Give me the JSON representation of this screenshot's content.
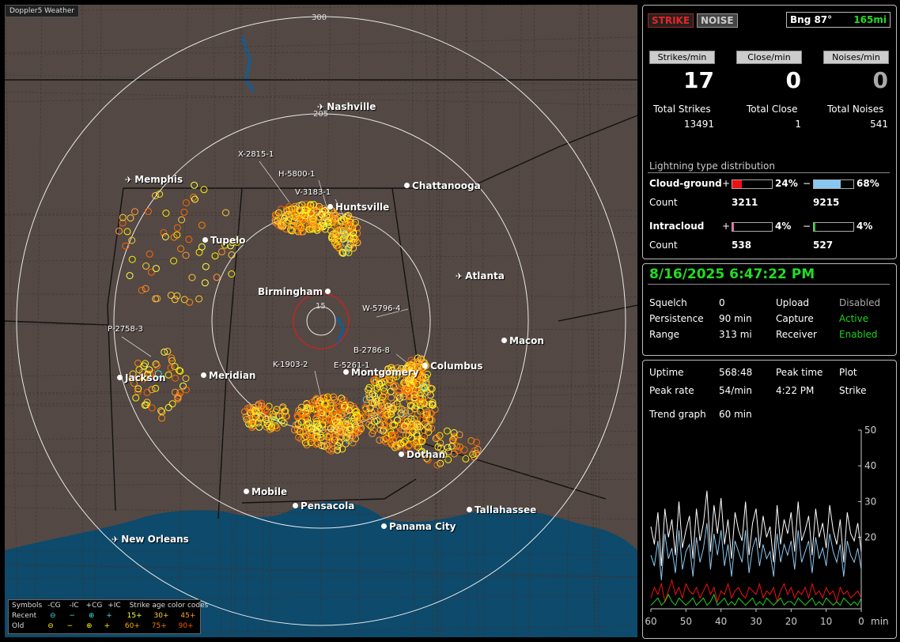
{
  "map": {
    "title": "Doppler5 Weather",
    "range_labels": [
      "300",
      "205",
      "15"
    ],
    "cities": [
      {
        "name": "Nashville",
        "icon": "airport-icon"
      },
      {
        "name": "Memphis",
        "icon": "airport-icon"
      },
      {
        "name": "Chattanooga",
        "icon": "city-dot-icon"
      },
      {
        "name": "Huntsville",
        "icon": "city-dot-icon"
      },
      {
        "name": "Tupelo",
        "icon": "city-dot-icon"
      },
      {
        "name": "Atlanta",
        "icon": "airport-icon"
      },
      {
        "name": "Birmingham",
        "icon": "city-dot-icon"
      },
      {
        "name": "Macon",
        "icon": "city-dot-icon"
      },
      {
        "name": "Columbus",
        "icon": "city-dot-icon"
      },
      {
        "name": "Montgomery",
        "icon": "city-dot-icon"
      },
      {
        "name": "Jackson",
        "icon": "city-dot-icon"
      },
      {
        "name": "Meridian",
        "icon": "city-dot-icon"
      },
      {
        "name": "Dothan",
        "icon": "city-dot-icon"
      },
      {
        "name": "Mobile",
        "icon": "city-dot-icon"
      },
      {
        "name": "Pensacola",
        "icon": "city-dot-icon"
      },
      {
        "name": "Tallahassee",
        "icon": "city-dot-icon"
      },
      {
        "name": "Panama City",
        "icon": "city-dot-icon"
      },
      {
        "name": "New Orleans",
        "icon": "airport-icon"
      }
    ],
    "storm_labels": [
      "X-2815-1",
      "H-5800-1",
      "V-3183-1",
      "W-5796-4",
      "P-2758-3",
      "B-2786-8",
      "K-1903-2",
      "E-5261-1"
    ],
    "legend": {
      "symbols_label": "Symbols",
      "recent_label": "Recent",
      "old_label": "Old",
      "cols": [
        "-CG",
        "-IC",
        "+CG",
        "+IC"
      ],
      "age_title": "Strike age color codes",
      "recent_ages": [
        "15+",
        "30+",
        "45+"
      ],
      "old_ages": [
        "60+",
        "75+",
        "90+"
      ],
      "age_colors": {
        "15": "#ffff44",
        "30": "#ffcc33",
        "45": "#ff9933",
        "60": "#ffee00",
        "75": "#ff8800",
        "90": "#ff6600"
      }
    }
  },
  "status": {
    "strike_btn": "STRIKE",
    "noise_btn": "NOISE",
    "bearing": "Bng 87°",
    "distance": "165mi",
    "rates": [
      {
        "label": "Strikes/min",
        "value": "17",
        "total_label": "Total Strikes",
        "total": "13491"
      },
      {
        "label": "Close/min",
        "value": "0",
        "total_label": "Total Close",
        "total": "1"
      },
      {
        "label": "Noises/min",
        "value": "0",
        "total_label": "Total Noises",
        "total": "541"
      }
    ],
    "dist_title": "Lightning type distribution",
    "cloud_ground": {
      "label": "Cloud-ground",
      "pos_sign": "+",
      "pos_pct": "24%",
      "pos_frac": 0.24,
      "neg_sign": "−",
      "neg_pct": "68%",
      "neg_frac": 0.68,
      "count_label": "Count",
      "pos_count": "3211",
      "neg_count": "9215",
      "pos_color": "#ee1111",
      "neg_color": "#88c8f0"
    },
    "intracloud": {
      "label": "Intracloud",
      "pos_sign": "+",
      "pos_pct": "4%",
      "pos_frac": 0.04,
      "neg_sign": "−",
      "neg_pct": "4%",
      "neg_frac": 0.04,
      "count_label": "Count",
      "pos_count": "538",
      "neg_count": "527",
      "pos_color": "#ee66aa",
      "neg_color": "#22cc22"
    }
  },
  "info": {
    "datetime": "8/16/2025 6:47:22 PM",
    "rows": [
      {
        "k1": "Squelch",
        "v1": "0",
        "k2": "Upload",
        "v2": "Disabled"
      },
      {
        "k1": "Persistence",
        "v1": "90 min",
        "k2": "Capture",
        "v2": "Active"
      },
      {
        "k1": "Range",
        "v1": "313 mi",
        "k2": "Receiver",
        "v2": "Enabled"
      }
    ]
  },
  "stats": {
    "uptime_label": "Uptime",
    "uptime": "568:48",
    "peak_time_label": "Peak time",
    "peak_time": "4:22 PM",
    "plot_label": "Plot",
    "plot": "Strike",
    "peak_rate_label": "Peak rate",
    "peak_rate": "54/min",
    "trend_label": "Trend graph",
    "trend": "60 min"
  },
  "chart_data": {
    "type": "line",
    "title": "",
    "xlabel": "min",
    "ylabel": "",
    "x_ticks": [
      "60",
      "50",
      "40",
      "30",
      "20",
      "10",
      "0"
    ],
    "y_ticks": [
      "50",
      "40",
      "30",
      "20"
    ],
    "xlim": [
      60,
      0
    ],
    "ylim": [
      0,
      50
    ],
    "series": [
      {
        "color": "#ffffff",
        "values": [
          23,
          18,
          27,
          12,
          28,
          20,
          25,
          15,
          30,
          17,
          22,
          26,
          14,
          28,
          19,
          24,
          33,
          16,
          29,
          21,
          31,
          18,
          25,
          14,
          27,
          22,
          19,
          30,
          15,
          24,
          28,
          17,
          26,
          20,
          23,
          13,
          29,
          18,
          25,
          21,
          27,
          16,
          30,
          19,
          22,
          26,
          15,
          28,
          20,
          24,
          17,
          29,
          22,
          18,
          25,
          13,
          27,
          21,
          19,
          24,
          16
        ]
      },
      {
        "color": "#8ec8f0",
        "values": [
          15,
          12,
          19,
          8,
          21,
          14,
          17,
          10,
          22,
          11,
          16,
          18,
          9,
          20,
          13,
          17,
          24,
          11,
          21,
          15,
          22,
          12,
          18,
          9,
          19,
          16,
          13,
          22,
          10,
          17,
          20,
          12,
          18,
          14,
          16,
          9,
          21,
          13,
          18,
          15,
          19,
          11,
          22,
          13,
          16,
          19,
          10,
          20,
          14,
          17,
          12,
          21,
          16,
          13,
          18,
          9,
          19,
          15,
          13,
          17,
          11
        ]
      },
      {
        "color": "#ee1111",
        "values": [
          3,
          6,
          4,
          7,
          2,
          5,
          8,
          4,
          6,
          3,
          7,
          5,
          4,
          6,
          3,
          5,
          7,
          4,
          6,
          2,
          5,
          4,
          7,
          3,
          5,
          6,
          4,
          3,
          6,
          5,
          4,
          7,
          3,
          5,
          4,
          6,
          2,
          5,
          7,
          4,
          6,
          3,
          5,
          4,
          6,
          3,
          7,
          4,
          5,
          3,
          6,
          4,
          5,
          2,
          6,
          4,
          5,
          3,
          4,
          5,
          3
        ]
      },
      {
        "color": "#22cc22",
        "values": [
          1,
          2,
          3,
          1,
          2,
          4,
          2,
          1,
          3,
          2,
          1,
          2,
          3,
          1,
          2,
          3,
          1,
          2,
          4,
          1,
          2,
          3,
          1,
          2,
          1,
          3,
          2,
          1,
          2,
          3,
          1,
          2,
          1,
          3,
          2,
          1,
          2,
          3,
          1,
          2,
          2,
          1,
          3,
          2,
          1,
          2,
          3,
          1,
          2,
          1,
          3,
          2,
          1,
          2,
          1,
          3,
          2,
          1,
          2,
          1,
          3
        ]
      }
    ]
  }
}
